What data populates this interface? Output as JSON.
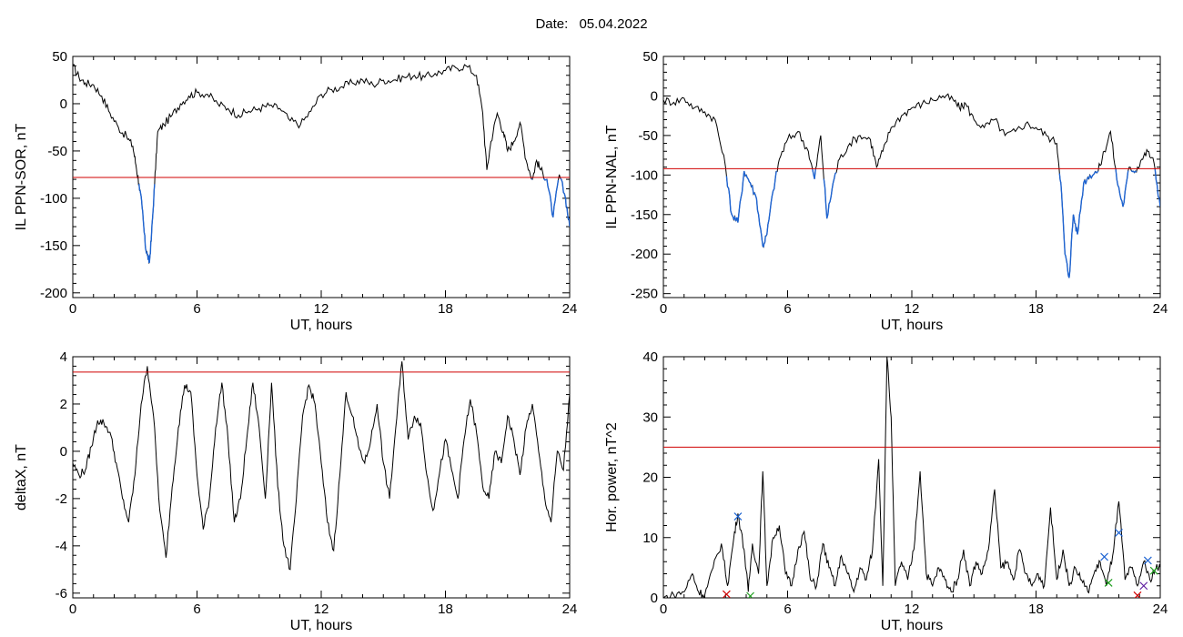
{
  "header": {
    "title_label": "Date:",
    "title_value": "05.04.2022"
  },
  "colors": {
    "trace": "#000000",
    "below_threshold": "#1e64d2",
    "threshold": "#d00000"
  },
  "chart_data": [
    {
      "id": "il-sor",
      "type": "line",
      "xlabel": "UT, hours",
      "ylabel": "IL PPN-SOR, nT",
      "xlim": [
        0,
        24
      ],
      "ylim": [
        -205,
        50
      ],
      "xticks": [
        0,
        6,
        12,
        18,
        24
      ],
      "yticks": [
        -200,
        -150,
        -100,
        -50,
        0,
        50
      ],
      "threshold": -78,
      "highlight_below_threshold": true,
      "x": [
        0,
        0.3,
        0.6,
        1.0,
        1.4,
        1.8,
        2.2,
        2.6,
        2.9,
        3.05,
        3.2,
        3.35,
        3.5,
        3.6,
        3.7,
        3.8,
        3.95,
        4.1,
        4.4,
        4.8,
        5.2,
        5.6,
        6.0,
        6.5,
        7.0,
        7.5,
        8.0,
        8.5,
        9.0,
        9.5,
        10.0,
        10.5,
        11.0,
        11.5,
        12.0,
        12.5,
        13.0,
        13.5,
        14.0,
        14.5,
        15.0,
        15.5,
        16.0,
        16.5,
        17.0,
        17.5,
        18.0,
        18.5,
        19.0,
        19.5,
        19.8,
        20.0,
        20.2,
        20.5,
        20.8,
        21.0,
        21.3,
        21.6,
        21.9,
        22.2,
        22.4,
        22.6,
        22.9,
        23.2,
        23.5,
        23.8,
        24.0
      ],
      "values": [
        40,
        28,
        22,
        20,
        8,
        -10,
        -25,
        -35,
        -45,
        -65,
        -85,
        -110,
        -150,
        -160,
        -168,
        -140,
        -85,
        -30,
        -22,
        -12,
        0,
        8,
        12,
        10,
        0,
        -5,
        -12,
        -8,
        -5,
        -2,
        -5,
        -18,
        -22,
        -8,
        10,
        15,
        18,
        22,
        25,
        20,
        25,
        25,
        28,
        30,
        28,
        32,
        35,
        38,
        40,
        30,
        -10,
        -70,
        -40,
        -10,
        -30,
        -50,
        -40,
        -20,
        -60,
        -80,
        -60,
        -70,
        -80,
        -120,
        -75,
        -100,
        -130
      ]
    },
    {
      "id": "il-nal",
      "type": "line",
      "xlabel": "UT, hours",
      "ylabel": "IL PPN-NAL, nT",
      "xlim": [
        0,
        24
      ],
      "ylim": [
        -255,
        50
      ],
      "xticks": [
        0,
        6,
        12,
        18,
        24
      ],
      "yticks": [
        -250,
        -200,
        -150,
        -100,
        -50,
        0,
        50
      ],
      "threshold": -92,
      "highlight_below_threshold": true,
      "x": [
        0,
        0.5,
        1.0,
        1.5,
        2.0,
        2.5,
        3.0,
        3.3,
        3.6,
        3.9,
        4.2,
        4.5,
        4.8,
        5.0,
        5.3,
        5.6,
        6.0,
        6.5,
        7.0,
        7.3,
        7.6,
        7.9,
        8.2,
        8.5,
        9.0,
        9.5,
        10.0,
        10.3,
        10.6,
        11.0,
        11.5,
        12.0,
        12.5,
        13.0,
        13.5,
        14.0,
        14.3,
        14.6,
        15.0,
        15.5,
        16.0,
        16.5,
        17.0,
        17.5,
        18.0,
        18.5,
        19.0,
        19.2,
        19.4,
        19.6,
        19.8,
        20.0,
        20.3,
        20.6,
        21.0,
        21.3,
        21.6,
        21.9,
        22.2,
        22.5,
        22.8,
        23.1,
        23.4,
        23.7,
        24.0
      ],
      "values": [
        -5,
        -8,
        -3,
        -15,
        -20,
        -30,
        -90,
        -150,
        -160,
        -95,
        -110,
        -130,
        -190,
        -175,
        -120,
        -80,
        -55,
        -45,
        -70,
        -105,
        -50,
        -155,
        -110,
        -80,
        -60,
        -50,
        -55,
        -90,
        -70,
        -40,
        -25,
        -15,
        -10,
        -5,
        0,
        -5,
        -15,
        -10,
        -30,
        -40,
        -30,
        -50,
        -45,
        -35,
        -40,
        -50,
        -60,
        -110,
        -200,
        -230,
        -150,
        -175,
        -110,
        -100,
        -95,
        -70,
        -45,
        -105,
        -140,
        -90,
        -95,
        -80,
        -70,
        -85,
        -140
      ]
    },
    {
      "id": "delta-x",
      "type": "line",
      "xlabel": "UT, hours",
      "ylabel": "deltaX, nT",
      "xlim": [
        0,
        24
      ],
      "ylim": [
        -6.2,
        4.0
      ],
      "xticks": [
        0,
        6,
        12,
        18,
        24
      ],
      "yticks": [
        -6,
        -4,
        -2,
        0,
        2,
        4
      ],
      "threshold": 3.35,
      "highlight_below_threshold": false,
      "x": [
        0,
        0.3,
        0.6,
        0.9,
        1.2,
        1.5,
        1.8,
        2.1,
        2.4,
        2.7,
        3.0,
        3.3,
        3.6,
        3.9,
        4.2,
        4.5,
        4.8,
        5.1,
        5.4,
        5.7,
        6.0,
        6.3,
        6.6,
        6.9,
        7.2,
        7.5,
        7.8,
        8.1,
        8.4,
        8.7,
        9.0,
        9.3,
        9.6,
        9.9,
        10.2,
        10.5,
        10.8,
        11.1,
        11.4,
        11.7,
        12.0,
        12.3,
        12.6,
        12.9,
        13.2,
        13.5,
        13.8,
        14.1,
        14.4,
        14.7,
        15.0,
        15.3,
        15.6,
        15.9,
        16.2,
        16.5,
        16.8,
        17.1,
        17.4,
        17.7,
        18.0,
        18.3,
        18.6,
        18.9,
        19.2,
        19.5,
        19.8,
        20.1,
        20.4,
        20.7,
        21.0,
        21.3,
        21.6,
        21.9,
        22.2,
        22.5,
        22.8,
        23.1,
        23.4,
        23.7,
        24.0
      ],
      "values": [
        -0.5,
        -1.0,
        -0.8,
        0.2,
        1.3,
        1.2,
        0.8,
        -0.5,
        -2.0,
        -3.0,
        -1.0,
        2.0,
        3.6,
        1.5,
        -2.5,
        -4.5,
        -1.5,
        1.0,
        2.8,
        2.5,
        -1.0,
        -3.3,
        -2.0,
        1.0,
        2.9,
        0.5,
        -3.0,
        -2.0,
        0.5,
        2.9,
        1.0,
        -2.0,
        2.9,
        -1.5,
        -4.0,
        -5.0,
        -2.0,
        1.5,
        2.8,
        2.0,
        -0.5,
        -3.0,
        -4.2,
        -1.0,
        2.5,
        1.5,
        0.2,
        -0.5,
        0.5,
        2.0,
        -0.5,
        -2.0,
        1.0,
        3.8,
        0.5,
        1.5,
        1.2,
        -1.0,
        -2.5,
        -1.0,
        0.5,
        -0.8,
        -2.0,
        0.5,
        2.2,
        0.8,
        -1.5,
        -2.0,
        0.0,
        -0.5,
        1.5,
        0.5,
        -1.0,
        1.0,
        2.0,
        0.0,
        -2.0,
        -3.0,
        0.0,
        -0.8,
        2.4
      ]
    },
    {
      "id": "hor-power",
      "type": "line",
      "xlabel": "UT, hours",
      "ylabel": "Hor. power, nT^2",
      "xlim": [
        0,
        24
      ],
      "ylim": [
        0,
        40
      ],
      "xticks": [
        0,
        6,
        12,
        18,
        24
      ],
      "yticks": [
        0,
        10,
        20,
        30,
        40
      ],
      "threshold": 25,
      "highlight_below_threshold": false,
      "x": [
        0,
        0.5,
        1.0,
        1.4,
        1.7,
        2.0,
        2.4,
        2.8,
        3.1,
        3.4,
        3.6,
        3.9,
        4.1,
        4.3,
        4.6,
        4.8,
        5.0,
        5.3,
        5.6,
        5.9,
        6.2,
        6.5,
        6.8,
        7.1,
        7.4,
        7.7,
        8.0,
        8.3,
        8.6,
        8.9,
        9.2,
        9.5,
        9.8,
        10.1,
        10.4,
        10.6,
        10.8,
        11.0,
        11.2,
        11.5,
        11.8,
        12.1,
        12.4,
        12.7,
        13.0,
        13.3,
        13.6,
        13.9,
        14.2,
        14.5,
        14.8,
        15.1,
        15.4,
        15.7,
        16.0,
        16.3,
        16.6,
        16.9,
        17.2,
        17.5,
        17.8,
        18.1,
        18.4,
        18.7,
        19.0,
        19.3,
        19.6,
        19.9,
        20.2,
        20.5,
        20.8,
        21.1,
        21.4,
        21.7,
        22.0,
        22.3,
        22.6,
        22.9,
        23.2,
        23.5,
        23.8,
        24.0
      ],
      "values": [
        0,
        0.5,
        1,
        4,
        1,
        0.5,
        5,
        9,
        2,
        10,
        14,
        8,
        1,
        9,
        4,
        21,
        2,
        10,
        12,
        4,
        2,
        8,
        11,
        3,
        2,
        9,
        5,
        2,
        7,
        4,
        1,
        5,
        3,
        8,
        23,
        2,
        40,
        30,
        2,
        6,
        3,
        8,
        21,
        4,
        2,
        5,
        3,
        1,
        3,
        8,
        2,
        6,
        4,
        8,
        18,
        5,
        6,
        3,
        8,
        4,
        2,
        4,
        2,
        15,
        3,
        8,
        2,
        5,
        3,
        1,
        4,
        6,
        2,
        7,
        16,
        3,
        5,
        2,
        6,
        3,
        5,
        5
      ],
      "markers": [
        {
          "x": 3.6,
          "y": 13.5,
          "color": "#1e64d2"
        },
        {
          "x": 3.05,
          "y": 0.6,
          "color": "#d00000"
        },
        {
          "x": 4.2,
          "y": 0.3,
          "color": "#20a020"
        },
        {
          "x": 21.3,
          "y": 6.8,
          "color": "#1e64d2"
        },
        {
          "x": 21.5,
          "y": 2.5,
          "color": "#20a020"
        },
        {
          "x": 22.0,
          "y": 10.8,
          "color": "#1e64d2"
        },
        {
          "x": 23.4,
          "y": 6.2,
          "color": "#1e64d2"
        },
        {
          "x": 23.2,
          "y": 2.0,
          "color": "#6020a0"
        },
        {
          "x": 22.9,
          "y": 0.4,
          "color": "#d00000"
        },
        {
          "x": 23.7,
          "y": 4.5,
          "color": "#20a020"
        }
      ]
    }
  ]
}
